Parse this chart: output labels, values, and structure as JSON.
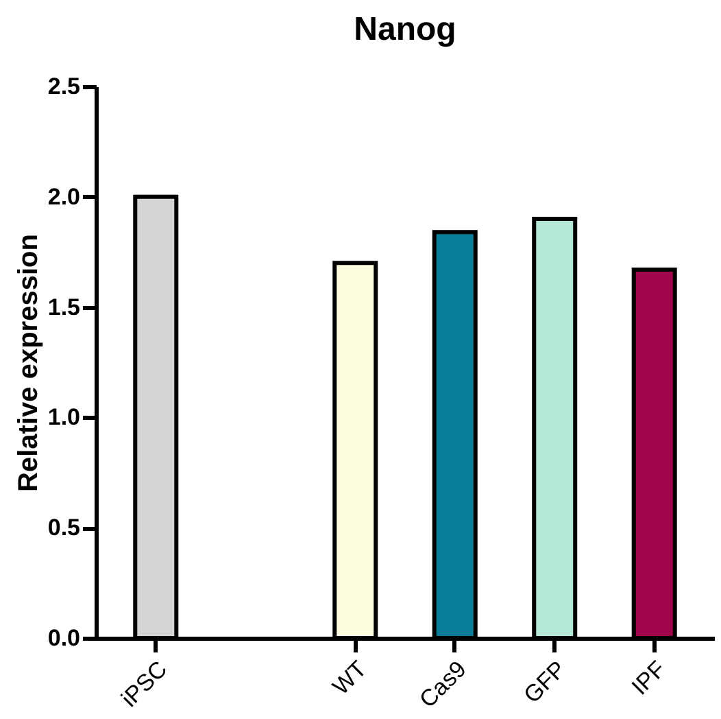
{
  "chart_data": {
    "type": "bar",
    "title": "Nanog",
    "ylabel": "Relative expression",
    "categories": [
      "iPSC",
      null,
      "WT",
      "Cas9",
      "GFP",
      "IPF"
    ],
    "values": [
      2.0,
      null,
      1.7,
      1.84,
      1.9,
      1.67
    ],
    "colors": [
      "#d4d4d4",
      "#ffffff",
      "#fffde0",
      "#0a7e99",
      "#b5e8d5",
      "#a0064c"
    ],
    "ylim": [
      0,
      2.5
    ],
    "yticks": [
      {
        "value": 0,
        "label": "0.0"
      },
      0.5,
      {
        "value": 1,
        "label": "1.0"
      },
      1.5,
      {
        "value": 2,
        "label": "2.0"
      },
      2.5
    ],
    "grid": false
  }
}
